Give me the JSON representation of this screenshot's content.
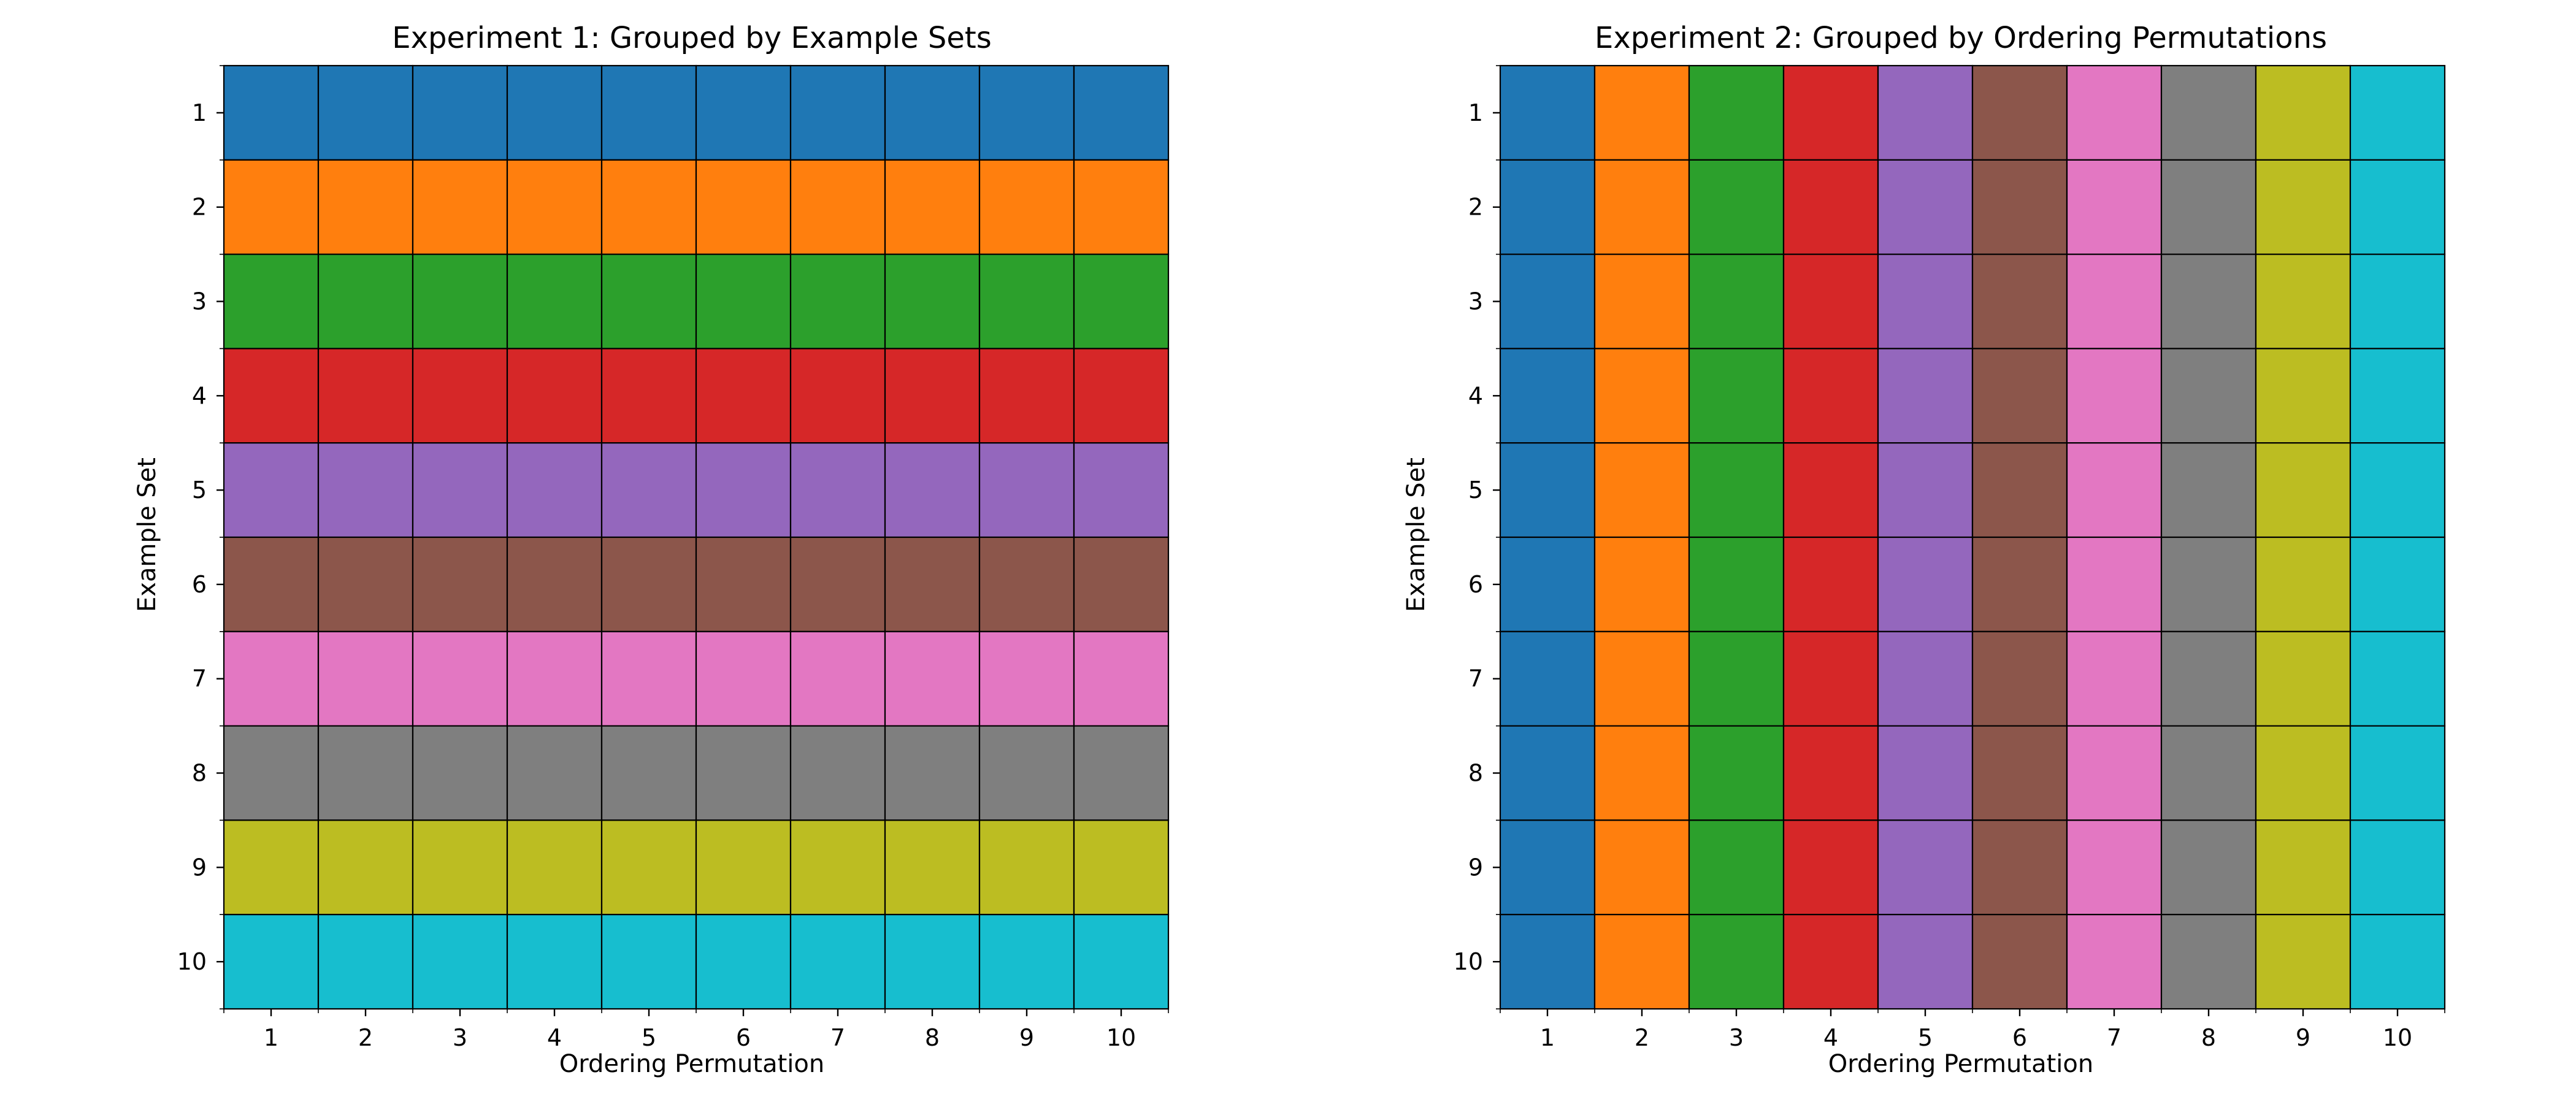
{
  "chart_data": [
    {
      "type": "heatmap",
      "title": "Experiment 1: Grouped by Example Sets",
      "xlabel": "Ordering Permutation",
      "ylabel": "Example Set",
      "x": [
        "1",
        "2",
        "3",
        "4",
        "5",
        "6",
        "7",
        "8",
        "9",
        "10"
      ],
      "y": [
        "1",
        "2",
        "3",
        "4",
        "5",
        "6",
        "7",
        "8",
        "9",
        "10"
      ],
      "color_by": "row",
      "grid": true
    },
    {
      "type": "heatmap",
      "title": "Experiment 2: Grouped by Ordering Permutations",
      "xlabel": "Ordering Permutation",
      "ylabel": "Example Set",
      "x": [
        "1",
        "2",
        "3",
        "4",
        "5",
        "6",
        "7",
        "8",
        "9",
        "10"
      ],
      "y": [
        "1",
        "2",
        "3",
        "4",
        "5",
        "6",
        "7",
        "8",
        "9",
        "10"
      ],
      "color_by": "column",
      "grid": true
    }
  ],
  "palette": [
    "#1f77b4",
    "#ff7f0e",
    "#2ca02c",
    "#d62728",
    "#9467bd",
    "#8c564b",
    "#e377c2",
    "#7f7f7f",
    "#bcbd22",
    "#17becf"
  ]
}
